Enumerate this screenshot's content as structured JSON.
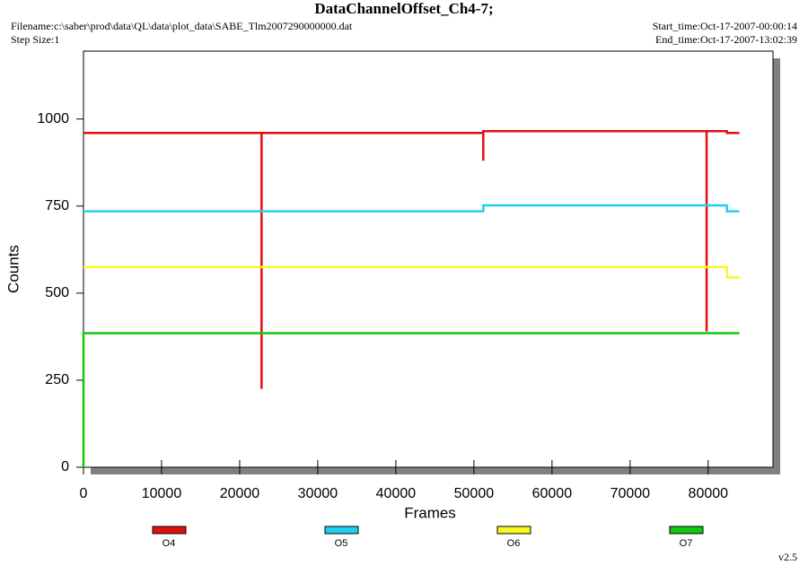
{
  "chart_data": {
    "type": "line",
    "title": "DataChannelOffset_Ch4-7;",
    "filename": "Filename:c:\\saber\\prod\\data\\QL\\data\\plot_data\\SABE_Tlm2007290000000.dat",
    "step_size": "Step Size:1",
    "start_time": "Start_time:Oct-17-2007-00:00:14",
    "end_time": "End_time:Oct-17-2007-13:02:39",
    "version": "v2.5",
    "x_label": "Frames",
    "y_label": "Counts",
    "xlim": [
      0,
      88300
    ],
    "ylim": [
      0,
      1195
    ],
    "xticks": [
      0,
      10000,
      20000,
      30000,
      40000,
      50000,
      60000,
      70000,
      80000
    ],
    "yticks": [
      0,
      250,
      500,
      750,
      1000
    ],
    "series": [
      {
        "name": "O4",
        "color": "#e01010",
        "x": [
          0,
          22800,
          22800,
          22800,
          51200,
          51200,
          51200,
          79800,
          79800,
          79800,
          82400,
          82400,
          84000
        ],
        "values": [
          960,
          960,
          225,
          960,
          960,
          880,
          965,
          965,
          390,
          965,
          965,
          960,
          960
        ]
      },
      {
        "name": "O5",
        "color": "#20d0f0",
        "x": [
          0,
          51200,
          51200,
          82400,
          82400,
          84000
        ],
        "values": [
          735,
          735,
          752,
          752,
          735,
          735
        ]
      },
      {
        "name": "O6",
        "color": "#f8f820",
        "x": [
          0,
          82400,
          82400,
          84000
        ],
        "values": [
          575,
          575,
          545,
          545
        ]
      },
      {
        "name": "O7",
        "color": "#10c810",
        "x": [
          0,
          0,
          84000
        ],
        "values": [
          0,
          385,
          385
        ]
      }
    ]
  }
}
